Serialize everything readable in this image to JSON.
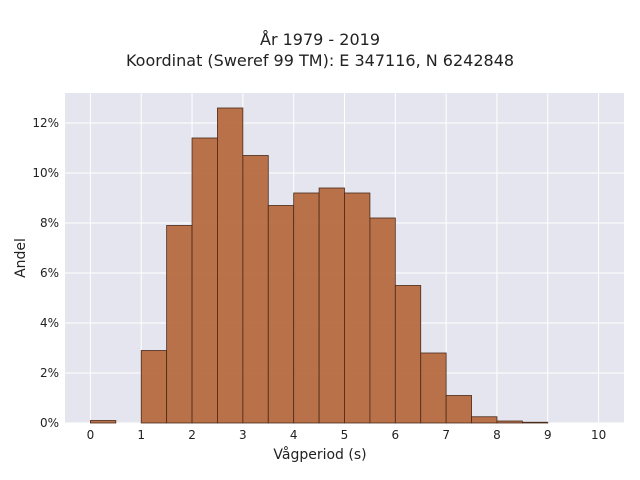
{
  "chart_data": {
    "type": "bar",
    "title": "År 1979 - 2019",
    "subtitle": "Koordinat (Sweref 99 TM): E 347116, N 6242848",
    "xlabel": "Vågperiod (s)",
    "ylabel": "Andel",
    "bin_width": 0.5,
    "bin_starts": [
      0,
      0.5,
      1,
      1.5,
      2,
      2.5,
      3,
      3.5,
      4,
      4.5,
      5,
      5.5,
      6,
      6.5,
      7,
      7.5,
      8,
      8.5,
      9,
      9.5
    ],
    "values": [
      0.1,
      0,
      2.9,
      7.9,
      11.4,
      12.6,
      10.7,
      8.7,
      9.2,
      9.4,
      9.2,
      8.2,
      5.5,
      2.8,
      1.1,
      0.25,
      0.08,
      0.03,
      0,
      0
    ],
    "xlim": [
      -0.5,
      10.5
    ],
    "ylim": [
      0,
      13.2
    ],
    "x_ticks": [
      "0",
      "1",
      "2",
      "3",
      "4",
      "5",
      "6",
      "7",
      "8",
      "9",
      "10"
    ],
    "y_ticks": [
      0,
      2,
      4,
      6,
      8,
      10,
      12
    ],
    "y_tick_labels": [
      "0%",
      "2%",
      "4%",
      "6%",
      "8%",
      "10%",
      "12%"
    ],
    "grid": true,
    "colors": {
      "bar": "#b5673c",
      "bar_edge": "#4a2a18",
      "plot_bg": "#e5e5ef",
      "grid": "#ffffff"
    }
  }
}
